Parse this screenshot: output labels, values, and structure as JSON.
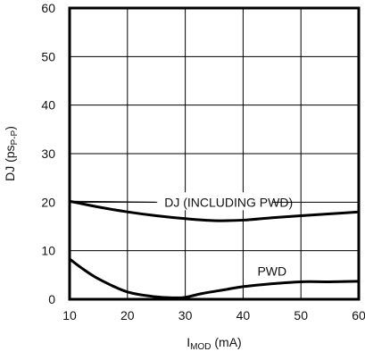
{
  "chart_data": {
    "type": "line",
    "xlabel": "I",
    "xlabel_sub": "MOD",
    "xlabel_unit": " (mA)",
    "ylabel": "DJ (ps",
    "ylabel_sub": "P-P",
    "ylabel_end": ")",
    "xlim": [
      10,
      60
    ],
    "ylim": [
      0,
      60
    ],
    "x_ticks": [
      10,
      20,
      30,
      40,
      50,
      60
    ],
    "y_ticks": [
      0,
      10,
      20,
      30,
      40,
      50,
      60
    ],
    "grid": true,
    "series": [
      {
        "name": "DJ (INCLUDING PWD)",
        "x": [
          10,
          15,
          20,
          25,
          30,
          35,
          40,
          45,
          50,
          55,
          60
        ],
        "y": [
          20.2,
          19.0,
          18.0,
          17.2,
          16.6,
          16.2,
          16.3,
          16.8,
          17.2,
          17.6,
          18.0
        ]
      },
      {
        "name": "PWD",
        "x": [
          10,
          12,
          15,
          20,
          25,
          28,
          30,
          33,
          37,
          40,
          45,
          50,
          55,
          60
        ],
        "y": [
          8.3,
          6.5,
          4.2,
          1.5,
          0.5,
          0.3,
          0.4,
          1.2,
          2.0,
          2.6,
          3.2,
          3.6,
          3.6,
          3.7
        ]
      }
    ]
  }
}
